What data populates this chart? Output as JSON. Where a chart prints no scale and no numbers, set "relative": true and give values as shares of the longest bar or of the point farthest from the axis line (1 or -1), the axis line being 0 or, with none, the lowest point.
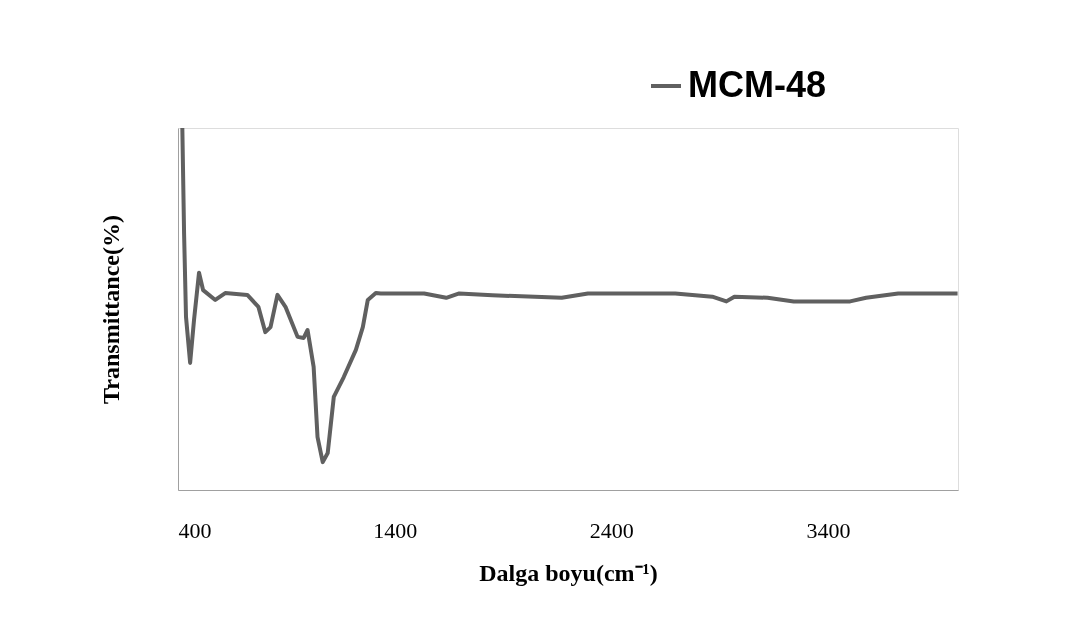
{
  "chart_data": {
    "type": "line",
    "relative": true,
    "xlabel": "Dalga boyu(cm⁻¹)",
    "ylabel": "Transmittance(%)",
    "xlim": [
      400,
      4000
    ],
    "xticks": [
      400,
      1400,
      2400,
      3400
    ],
    "grid": false,
    "legend": "top right",
    "marker": "none",
    "line_style": "solid",
    "series": [
      {
        "name": "MCM-48",
        "color": "#606060",
        "x": [
          420,
          428,
          437,
          456,
          474,
          497,
          516,
          572,
          618,
          720,
          771,
          803,
          827,
          859,
          896,
          952,
          980,
          998,
          1026,
          1044,
          1068,
          1091,
          1119,
          1165,
          1221,
          1253,
          1276,
          1313,
          1336,
          1536,
          1638,
          1698,
          1851,
          2171,
          2292,
          2695,
          2866,
          2931,
          2968,
          3121,
          3242,
          3502,
          3576,
          3724,
          3998
        ],
        "values": [
          1,
          0.71,
          0.478,
          0.351,
          0.47,
          0.6,
          0.552,
          0.525,
          0.544,
          0.539,
          0.506,
          0.436,
          0.45,
          0.539,
          0.506,
          0.423,
          0.42,
          0.442,
          0.34,
          0.146,
          0.077,
          0.102,
          0.257,
          0.312,
          0.387,
          0.45,
          0.525,
          0.544,
          0.543,
          0.543,
          0.531,
          0.543,
          0.538,
          0.531,
          0.543,
          0.543,
          0.534,
          0.521,
          0.534,
          0.531,
          0.521,
          0.521,
          0.531,
          0.543,
          0.543
        ]
      }
    ]
  }
}
